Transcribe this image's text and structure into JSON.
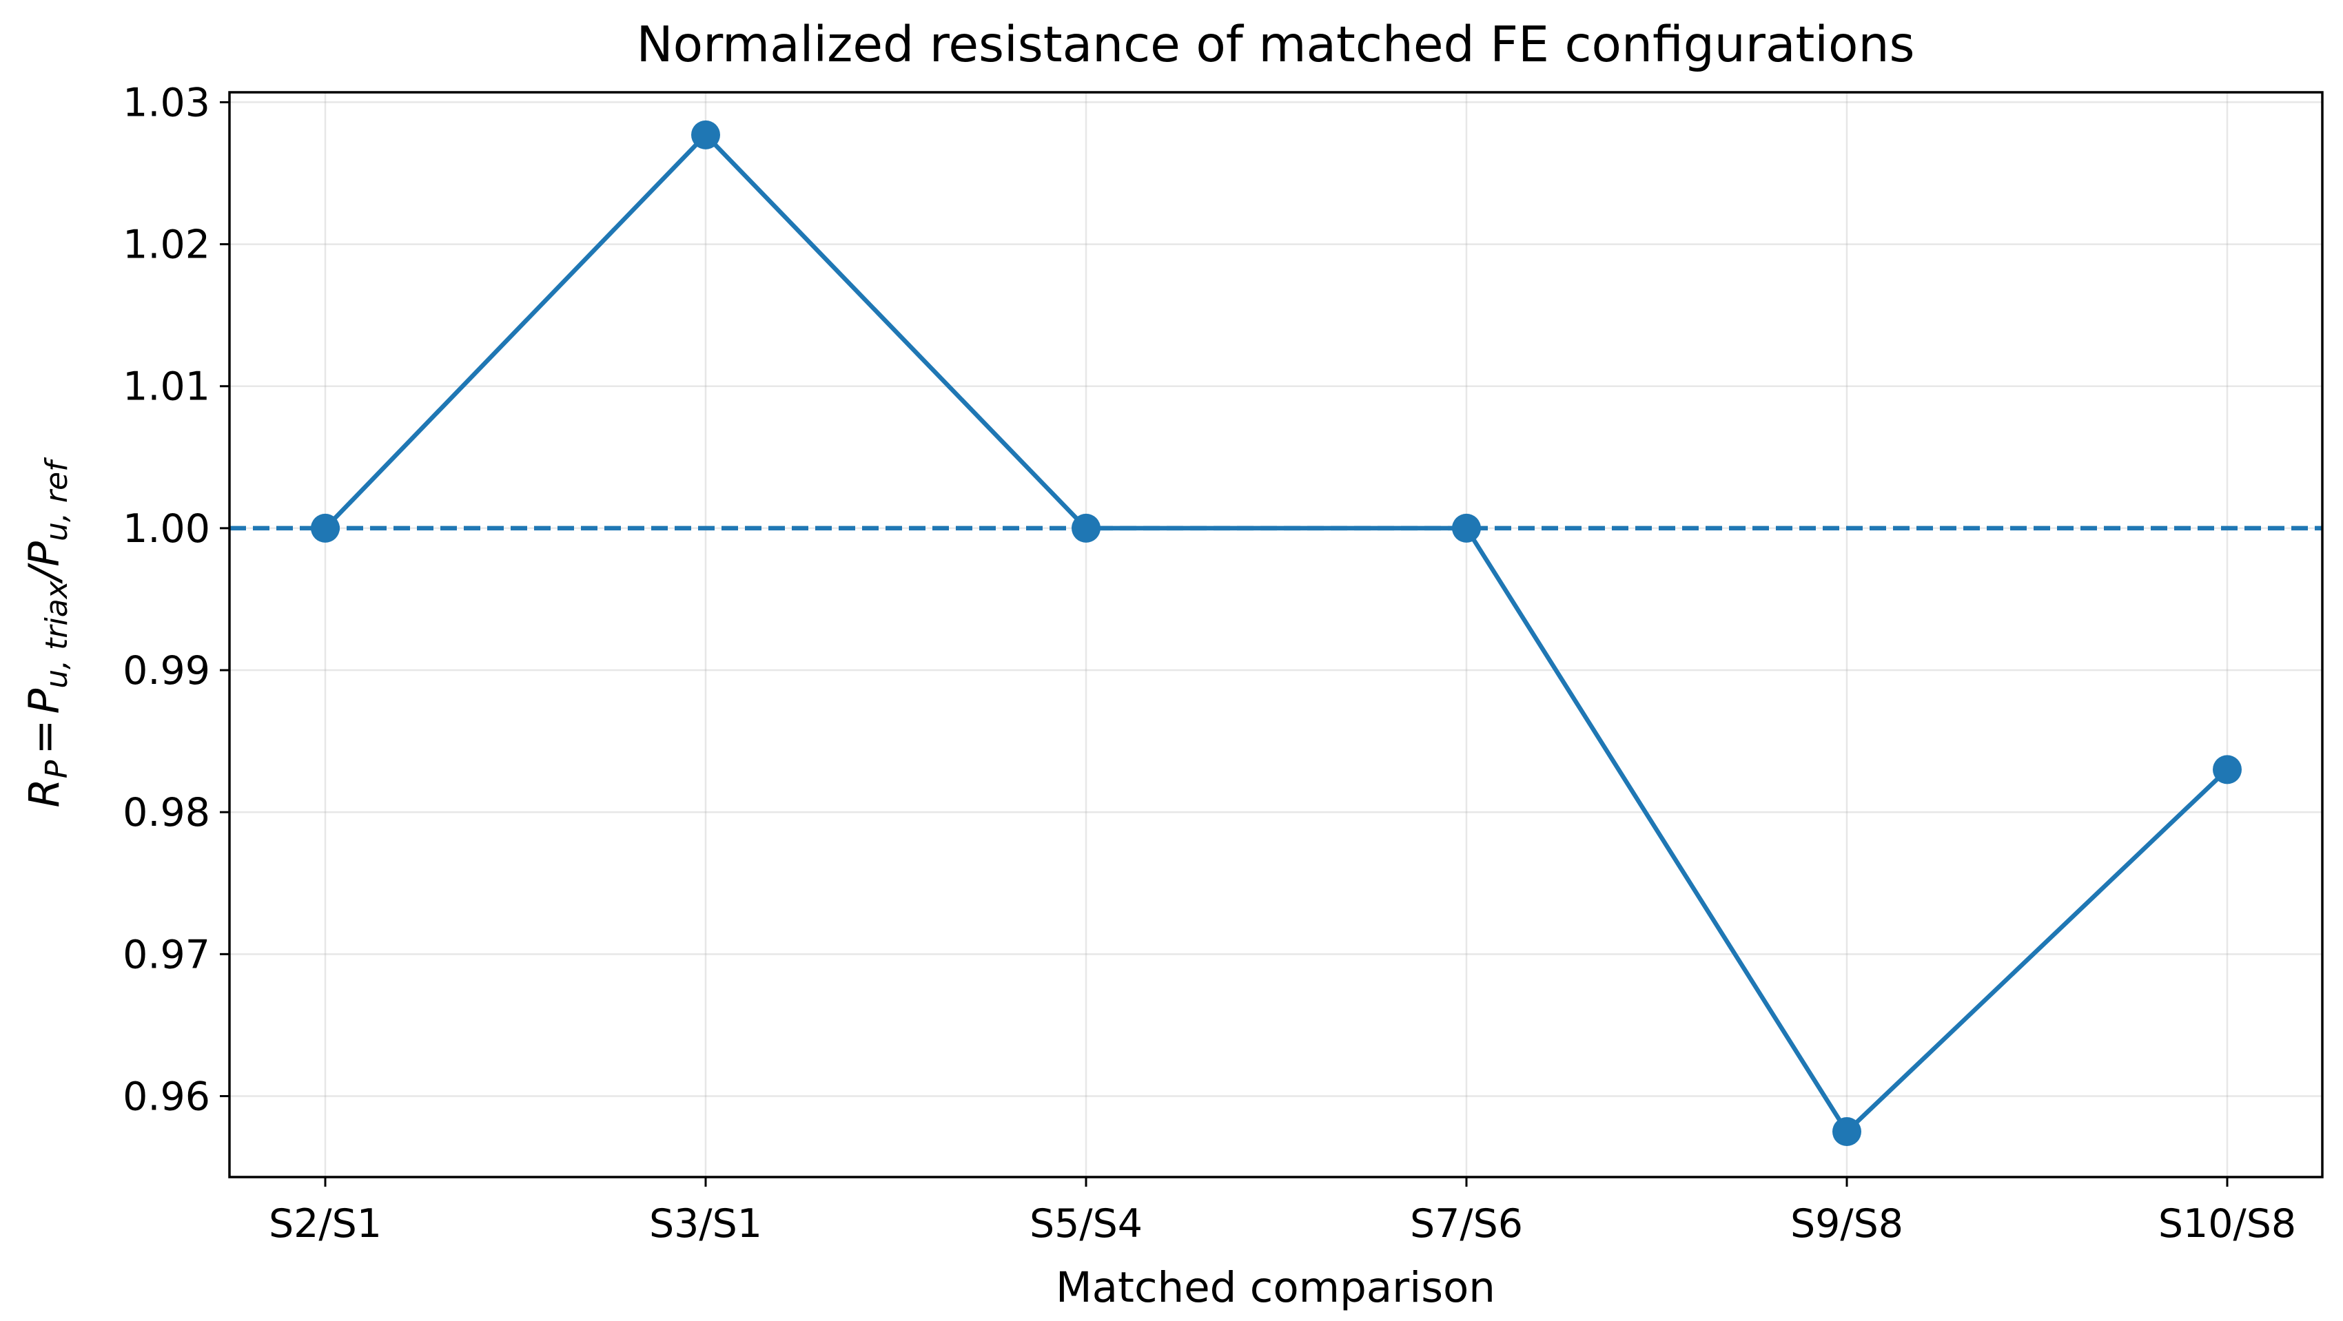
{
  "chart_data": {
    "type": "line",
    "title": "Normalized resistance of matched FE configurations",
    "xlabel": "Matched comparison",
    "ylabel": {
      "R": "R",
      "R_sub": "P",
      "eq": "=",
      "P1": "P",
      "P1_sub": "u, triax",
      "slash": "/",
      "P2": "P",
      "P2_sub": "u, ref"
    },
    "categories": [
      "S2/S1",
      "S3/S1",
      "S5/S4",
      "S7/S6",
      "S9/S8",
      "S10/S8"
    ],
    "series": [
      {
        "values": [
          1.0,
          1.0277,
          1.0,
          1.0,
          0.9575,
          0.983
        ],
        "color": "#1f77b4",
        "marker": "circle"
      }
    ],
    "reference_line": {
      "y": 1.0,
      "style": "dashed",
      "color": "#1f77b4"
    },
    "ylim": [
      0.9543,
      1.0307
    ],
    "yticks": [
      0.96,
      0.97,
      0.98,
      0.99,
      1.0,
      1.01,
      1.02,
      1.03
    ],
    "ytick_labels": [
      "0.96",
      "0.97",
      "0.98",
      "0.99",
      "1.00",
      "1.01",
      "1.02",
      "1.03"
    ],
    "grid": true,
    "legend": "none"
  }
}
